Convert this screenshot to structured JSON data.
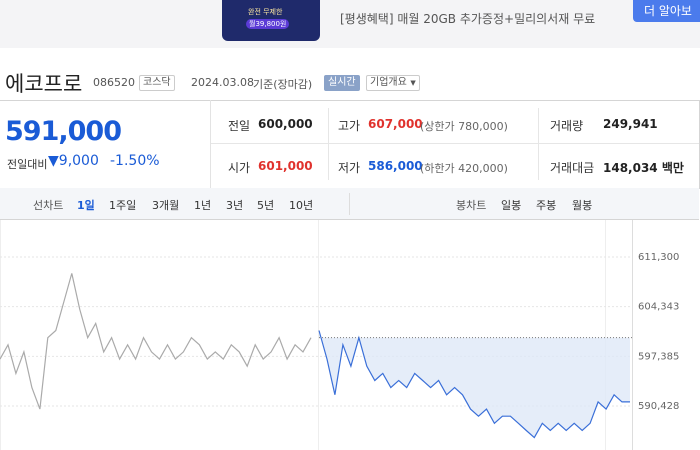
{
  "ad": {
    "badge": "완전 무제한",
    "price": "월39,800원",
    "sub": "[평생혜택] 매월 20GB 추가증정+밀리의서재 무료",
    "button": "더 알아보"
  },
  "header": {
    "name": "에코프로",
    "code": "086520",
    "market": "코스닥",
    "date": "2024.03.08",
    "basis": "기준(장마감)",
    "realtime": "실시간",
    "overview": "기업개요"
  },
  "price": {
    "current": "591,000",
    "change_label": "전일대비",
    "change": "9,000",
    "rate": "-1.50%"
  },
  "stats": [
    [
      {
        "label": "전일",
        "value": "600,000"
      },
      {
        "label": "고가",
        "value": "607,000",
        "note": "(상한가 780,000)"
      },
      {
        "label": "거래량",
        "value": "249,941"
      }
    ],
    [
      {
        "label": "시가",
        "value": "601,000"
      },
      {
        "label": "저가",
        "value": "586,000",
        "note": "(하한가 420,000)"
      },
      {
        "label": "거래대금",
        "value": "148,034 백만"
      }
    ]
  ],
  "tabs": {
    "line_label": "선차트",
    "line": [
      "1일",
      "1주일",
      "3개월",
      "1년",
      "3년",
      "5년",
      "10년"
    ],
    "candle_label": "봉차트",
    "candle": [
      "일봉",
      "주봉",
      "월봉"
    ]
  },
  "chart_data": {
    "type": "line",
    "ylim": [
      584264,
      616483
    ],
    "yticks": [
      {
        "value": 611300,
        "label": "611,300"
      },
      {
        "value": 604343,
        "label": "604,343"
      },
      {
        "value": 597385,
        "label": "597,385"
      },
      {
        "value": 590428,
        "label": "590,428"
      }
    ],
    "baseline": 600000,
    "series": [
      {
        "color": "#aaaaaa",
        "values": [
          597000,
          599000,
          595000,
          598000,
          593000,
          590000,
          600000,
          601000,
          605000,
          609000,
          604000,
          600000,
          602000,
          598000,
          600000,
          597000,
          599000,
          597000,
          600000,
          598000,
          597000,
          599000,
          597000,
          598000,
          600000,
          599000,
          597000,
          598000,
          597000,
          599000,
          598000,
          596000,
          599000,
          597000,
          598000,
          600000,
          597000,
          599000,
          598000,
          600000
        ]
      },
      {
        "color": "#3a6fd8",
        "values": [
          601000,
          597000,
          592000,
          599000,
          596000,
          600000,
          596000,
          594000,
          595000,
          593000,
          594000,
          593000,
          595000,
          594000,
          593000,
          594000,
          592000,
          593000,
          592000,
          590000,
          589000,
          590000,
          588000,
          589000,
          589000,
          588000,
          587000,
          586000,
          588000,
          587000,
          588000,
          587000,
          588000,
          587000,
          588000,
          591000,
          590000,
          592000,
          591000,
          591000
        ]
      }
    ]
  }
}
